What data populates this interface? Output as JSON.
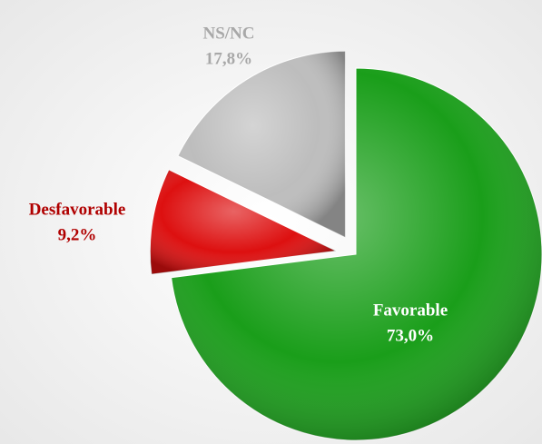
{
  "chart_data": {
    "type": "pie",
    "categories": [
      "Favorable",
      "Desfavorable",
      "NS/NC"
    ],
    "values": [
      73.0,
      9.2,
      17.8
    ],
    "value_labels": [
      "73,0%",
      "9,2%",
      "17,8%"
    ],
    "colors": [
      "#1a9e1a",
      "#dd1010",
      "#bdbdbd"
    ],
    "label_colors": [
      "#ffffff",
      "#b00000",
      "#a8a8a8"
    ]
  }
}
